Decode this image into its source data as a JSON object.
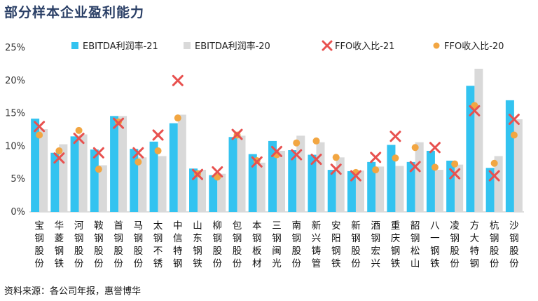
{
  "title": "部分样本企业盈利能力",
  "source": "资料来源：各公司年报，惠誉博华",
  "colors": {
    "ebitda21": "#33c3f0",
    "ebitda20": "#d9d9d9",
    "ffo21": "#e8514f",
    "ffo20": "#f2a642"
  },
  "chart_data": {
    "type": "bar",
    "ylim": [
      0,
      25
    ],
    "yticks": [
      0,
      5,
      10,
      15,
      20,
      25
    ],
    "ytick_labels": [
      "0%",
      "5%",
      "10%",
      "15%",
      "20%",
      "25%"
    ],
    "legend_position": "top",
    "grid": false,
    "categories": [
      "宝钢股份",
      "华菱钢铁",
      "河钢股份",
      "鞍钢股份",
      "首钢股份",
      "马钢股份",
      "太钢不锈",
      "中信特钢",
      "山东钢铁",
      "柳钢股份",
      "包钢股份",
      "本钢板材",
      "三钢闽光",
      "南钢股份",
      "新兴铸管",
      "安阳钢铁",
      "新钢股份",
      "酒钢宏兴",
      "重庆钢铁",
      "韶钢松山",
      "八一钢铁",
      "凌钢股份",
      "方大特钢",
      "杭钢股份",
      "沙钢股份"
    ],
    "series": [
      {
        "name": "EBITDA利润率-21",
        "kind": "bar",
        "color": "#33c3f0",
        "values": [
          14.2,
          9.0,
          11.5,
          9.5,
          14.6,
          9.6,
          10.7,
          13.5,
          6.6,
          5.6,
          11.4,
          8.8,
          10.8,
          9.4,
          8.7,
          6.4,
          6.2,
          7.6,
          10.2,
          7.6,
          9.3,
          7.8,
          19.2,
          6.7,
          17.0
        ]
      },
      {
        "name": "EBITDA利润率-20",
        "kind": "bar",
        "color": "#d9d9d9",
        "values": [
          12.6,
          10.3,
          11.8,
          7.1,
          14.6,
          8.3,
          8.5,
          14.8,
          6.4,
          5.8,
          11.6,
          7.5,
          9.3,
          11.6,
          10.6,
          8.3,
          6.3,
          6.9,
          7.0,
          10.6,
          6.4,
          7.2,
          21.8,
          8.5,
          14.1
        ]
      },
      {
        "name": "FFO收入比-21",
        "kind": "x",
        "color": "#e8514f",
        "values": [
          13.0,
          8.2,
          11.2,
          9.0,
          13.5,
          9.0,
          11.7,
          20.0,
          5.7,
          6.1,
          11.8,
          7.6,
          9.2,
          8.7,
          8.0,
          6.5,
          5.5,
          8.3,
          11.5,
          6.9,
          9.8,
          5.8,
          15.4,
          5.5,
          14.1
        ]
      },
      {
        "name": "FFO收入比-20",
        "kind": "dot",
        "color": "#f2a642",
        "values": [
          11.7,
          9.3,
          12.4,
          6.5,
          13.7,
          7.6,
          9.3,
          14.3,
          5.8,
          5.3,
          11.7,
          7.8,
          8.7,
          10.5,
          10.8,
          8.3,
          6.0,
          6.4,
          8.2,
          9.8,
          6.8,
          7.3,
          16.2,
          7.4,
          11.7
        ]
      }
    ]
  }
}
